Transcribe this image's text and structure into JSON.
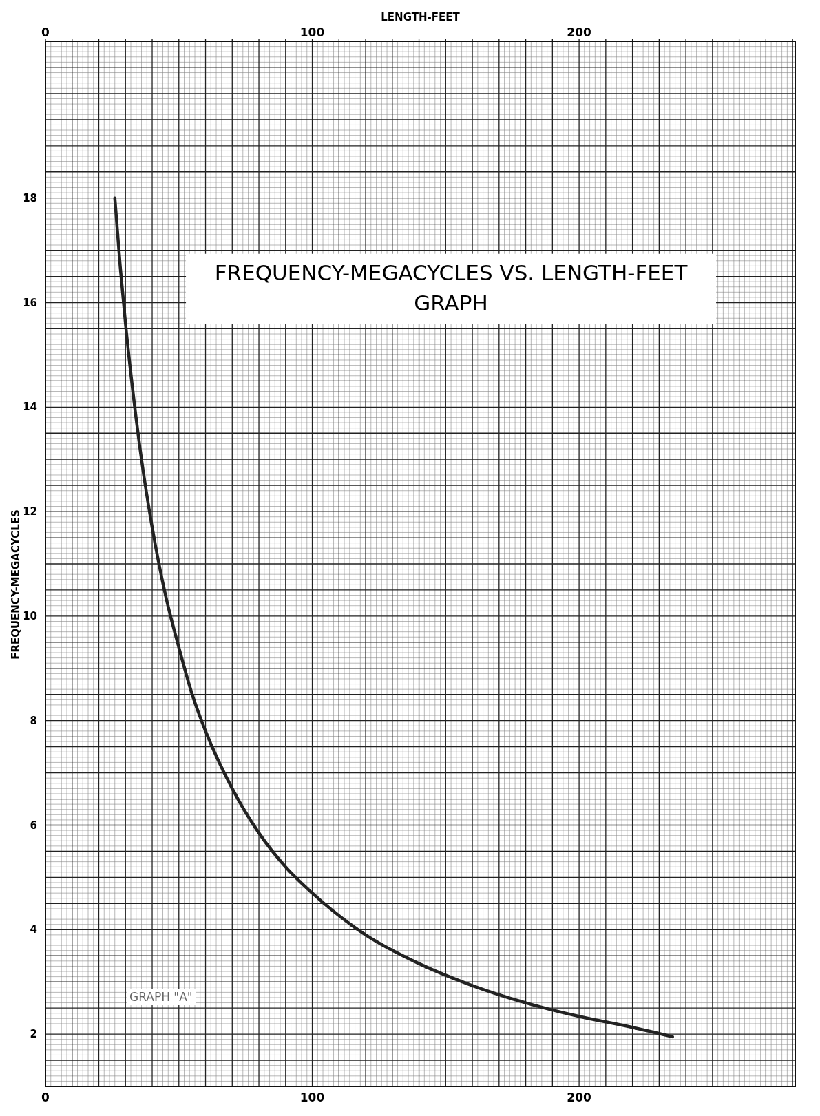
{
  "chart_data": {
    "type": "line",
    "title": "FREQUENCY-MEGACYCLES VS. LENGTH-FEET",
    "subtitle": "GRAPH",
    "x2label": "LENGTH-FEET",
    "ylabel": "FREQUENCY-MEGACYCLES",
    "annotations": [
      "GRAPH \"A\""
    ],
    "series": [
      {
        "color": "#222222",
        "x": [
          26,
          28,
          30,
          33,
          36,
          40,
          45,
          50,
          55,
          60,
          70,
          80,
          90,
          100,
          120,
          140,
          160,
          180,
          200,
          220,
          235
        ],
        "values": [
          18,
          16.7,
          15.6,
          14.2,
          13,
          11.7,
          10.4,
          9.4,
          8.5,
          7.8,
          6.7,
          5.85,
          5.2,
          4.7,
          3.9,
          3.35,
          2.93,
          2.6,
          2.34,
          2.13,
          1.95
        ]
      }
    ],
    "xlim": [
      0,
      281
    ],
    "ylim": [
      1,
      21
    ],
    "xticks": [
      0,
      {
        "value": 10,
        "label": null
      },
      {
        "value": 20,
        "label": null
      },
      {
        "value": 30,
        "label": null
      },
      {
        "value": 40,
        "label": null
      },
      {
        "value": 50,
        "label": null
      },
      {
        "value": 60,
        "label": null
      },
      {
        "value": 70,
        "label": null
      },
      {
        "value": 80,
        "label": null
      },
      {
        "value": 90,
        "label": null
      },
      100,
      {
        "value": 110,
        "label": null
      },
      {
        "value": 120,
        "label": null
      },
      {
        "value": 130,
        "label": null
      },
      {
        "value": 140,
        "label": null
      },
      {
        "value": 150,
        "label": null
      },
      {
        "value": 160,
        "label": null
      },
      {
        "value": 170,
        "label": null
      },
      {
        "value": 180,
        "label": null
      },
      {
        "value": 190,
        "label": null
      },
      200,
      {
        "value": 210,
        "label": null
      },
      {
        "value": 220,
        "label": null
      },
      {
        "value": 230,
        "label": null
      },
      {
        "value": 240,
        "label": null
      },
      {
        "value": 250,
        "label": null
      },
      {
        "value": 260,
        "label": null
      },
      {
        "value": 270,
        "label": null
      },
      {
        "value": 280,
        "label": null
      }
    ],
    "x2lim": [
      0,
      281
    ],
    "x2ticks": [
      0,
      {
        "value": 10,
        "label": null
      },
      {
        "value": 20,
        "label": null
      },
      {
        "value": 30,
        "label": null
      },
      {
        "value": 40,
        "label": null
      },
      {
        "value": 50,
        "label": null
      },
      {
        "value": 60,
        "label": null
      },
      {
        "value": 70,
        "label": null
      },
      {
        "value": 80,
        "label": null
      },
      {
        "value": 90,
        "label": null
      },
      100,
      {
        "value": 110,
        "label": null
      },
      {
        "value": 120,
        "label": null
      },
      {
        "value": 130,
        "label": null
      },
      {
        "value": 140,
        "label": null
      },
      {
        "value": 150,
        "label": null
      },
      {
        "value": 160,
        "label": null
      },
      {
        "value": 170,
        "label": null
      },
      {
        "value": 180,
        "label": null
      },
      {
        "value": 190,
        "label": null
      },
      200,
      {
        "value": 210,
        "label": null
      },
      {
        "value": 220,
        "label": null
      },
      {
        "value": 230,
        "label": null
      },
      {
        "value": 240,
        "label": null
      },
      {
        "value": 250,
        "label": null
      },
      {
        "value": 260,
        "label": null
      },
      {
        "value": 270,
        "label": null
      },
      {
        "value": 280,
        "label": null
      }
    ],
    "yticks": [
      {
        "value": 1,
        "label": null
      },
      {
        "value": 1.5,
        "label": null
      },
      2,
      {
        "value": 2.5,
        "label": null
      },
      {
        "value": 3,
        "label": null
      },
      {
        "value": 3.5,
        "label": null
      },
      4,
      {
        "value": 4.5,
        "label": null
      },
      {
        "value": 5,
        "label": null
      },
      {
        "value": 5.5,
        "label": null
      },
      6,
      {
        "value": 6.5,
        "label": null
      },
      {
        "value": 7,
        "label": null
      },
      {
        "value": 7.5,
        "label": null
      },
      8,
      {
        "value": 8.5,
        "label": null
      },
      {
        "value": 9,
        "label": null
      },
      {
        "value": 9.5,
        "label": null
      },
      10,
      {
        "value": 10.5,
        "label": null
      },
      {
        "value": 11,
        "label": null
      },
      {
        "value": 11.5,
        "label": null
      },
      12,
      {
        "value": 12.5,
        "label": null
      },
      {
        "value": 13,
        "label": null
      },
      {
        "value": 13.5,
        "label": null
      },
      14,
      {
        "value": 14.5,
        "label": null
      },
      {
        "value": 15,
        "label": null
      },
      {
        "value": 15.5,
        "label": null
      },
      16,
      {
        "value": 16.5,
        "label": null
      },
      {
        "value": 17,
        "label": null
      },
      {
        "value": 17.5,
        "label": null
      },
      18,
      {
        "value": 18.5,
        "label": null
      },
      {
        "value": 19,
        "label": null
      },
      {
        "value": 19.5,
        "label": null
      },
      {
        "value": 20,
        "label": null
      },
      {
        "value": 20.5,
        "label": null
      },
      {
        "value": 21,
        "label": null
      }
    ],
    "grid": true,
    "line_style": "solid"
  }
}
